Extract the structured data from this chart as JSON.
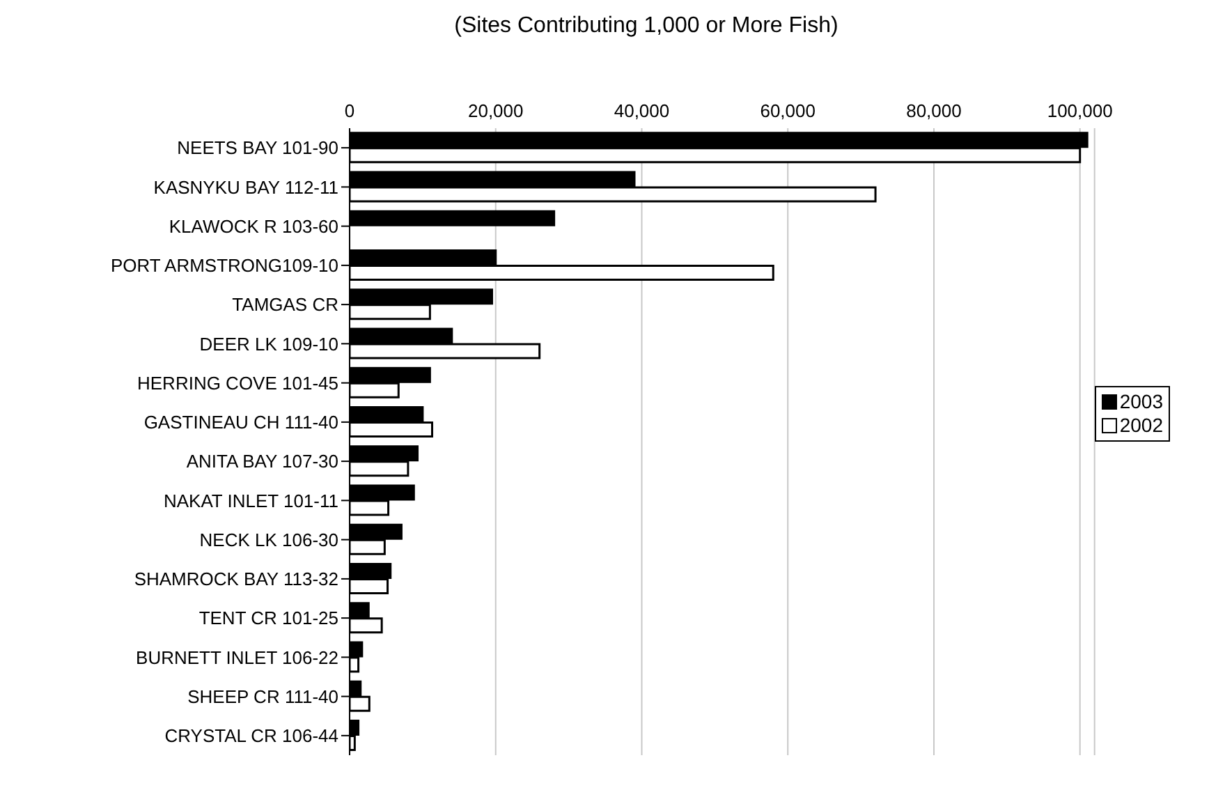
{
  "chart_data": {
    "type": "bar",
    "orientation": "horizontal",
    "title": "(Sites Contributing 1,000 or More Fish)",
    "categories": [
      "NEETS BAY 101-90",
      "KASNYKU BAY 112-11",
      "KLAWOCK R 103-60",
      "PORT ARMSTRONG109-10",
      "TAMGAS CR",
      "DEER LK 109-10",
      "HERRING COVE 101-45",
      "GASTINEAU CH 111-40",
      "ANITA BAY 107-30",
      "NAKAT INLET 101-11",
      "NECK LK 106-30",
      "SHAMROCK BAY 113-32",
      "TENT CR 101-25",
      "BURNETT INLET 106-22",
      "SHEEP CR 111-40",
      "CRYSTAL CR 106-44"
    ],
    "series": [
      {
        "name": "2003",
        "color": "#000000",
        "values": [
          101000,
          39000,
          28000,
          20000,
          19500,
          14000,
          11000,
          10000,
          9300,
          8800,
          7100,
          5600,
          2600,
          1700,
          1500,
          1200
        ]
      },
      {
        "name": "2002",
        "color": "#ffffff",
        "values": [
          100000,
          72000,
          null,
          58000,
          11000,
          26000,
          6700,
          11300,
          8000,
          5300,
          4800,
          5200,
          4400,
          1200,
          2700,
          700
        ]
      }
    ],
    "xlim": [
      0,
      102000
    ],
    "xticks": [
      0,
      {
        "value": 20000,
        "label": "20,000"
      },
      {
        "value": 40000,
        "label": "40,000"
      },
      {
        "value": 60000,
        "label": "60,000"
      },
      {
        "value": 80000,
        "label": "80,000"
      },
      {
        "value": 100000,
        "label": "100,000"
      }
    ],
    "grid": "x",
    "legend": "right"
  }
}
